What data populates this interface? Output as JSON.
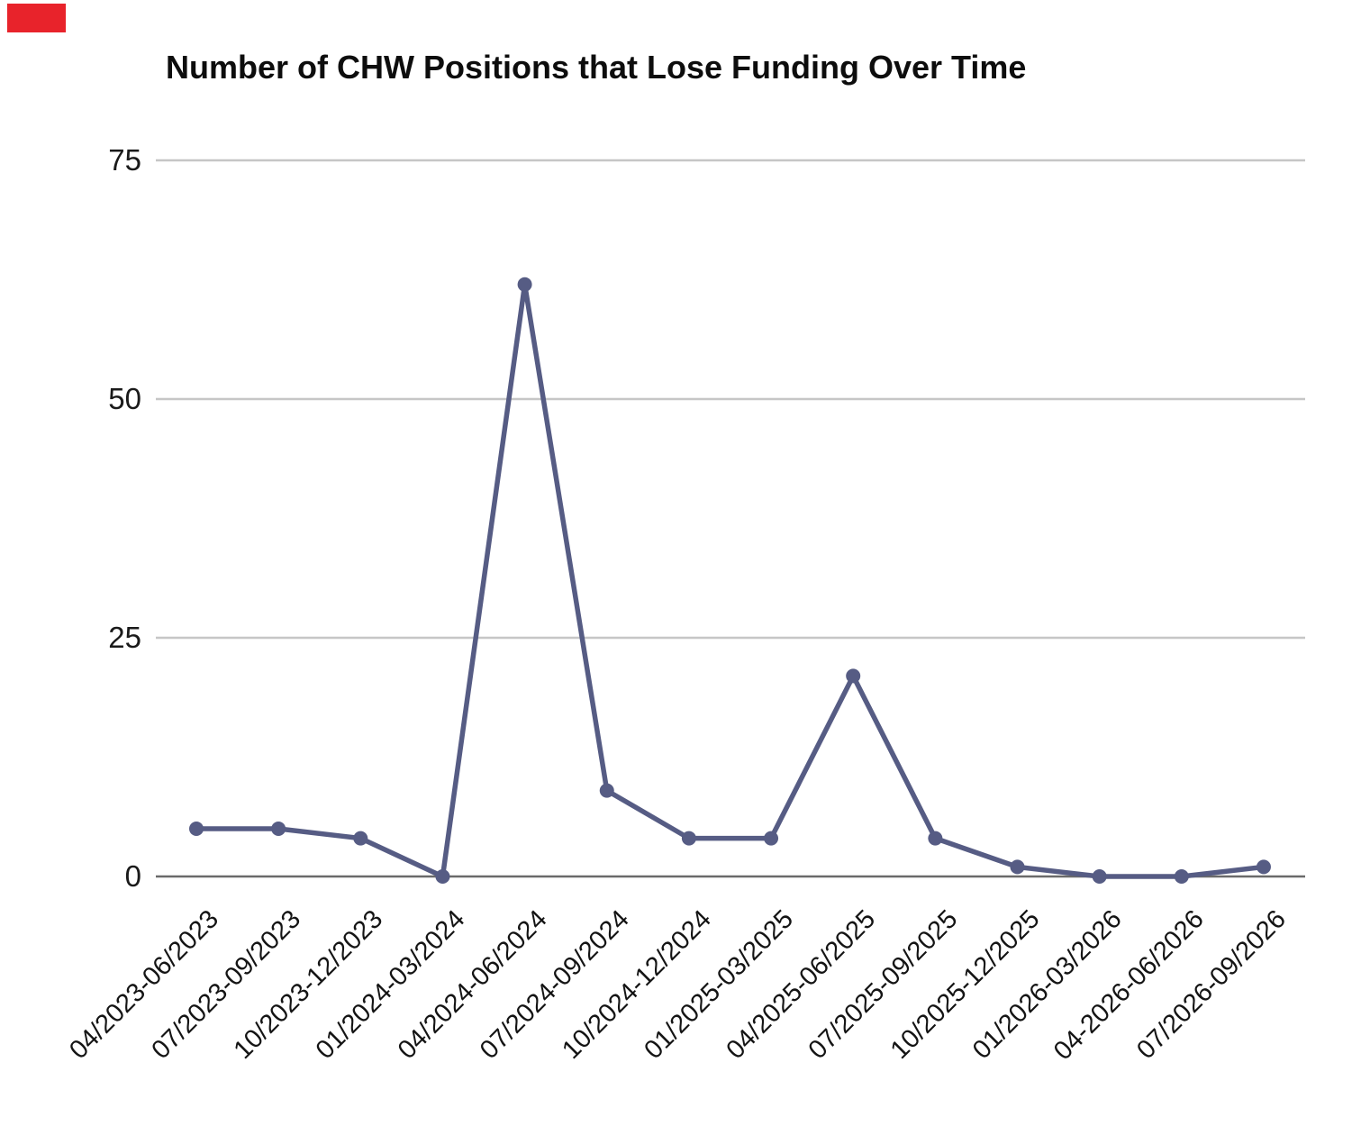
{
  "chart_data": {
    "type": "line",
    "title": "Number of CHW Positions that Lose Funding Over Time",
    "categories": [
      "04/2023-06/2023",
      "07/2023-09/2023",
      "10/2023-12/2023",
      "01/2024-03/2024",
      "04/2024-06/2024",
      "07/2024-09/2024",
      "10/2024-12/2024",
      "01/2025-03/2025",
      "04/2025-06/2025",
      "07/2025-09/2025",
      "10/2025-12/2025",
      "01/2026-03/2026",
      "04-2026-06/2026",
      "07/2026-09/2026"
    ],
    "values": [
      5,
      5,
      4,
      0,
      62,
      9,
      4,
      4,
      21,
      4,
      1,
      0,
      0,
      1
    ],
    "xlabel": "",
    "ylabel": "",
    "ylim": [
      0,
      75
    ],
    "yticks": [
      0,
      25,
      50,
      75
    ],
    "grid": "horizontal-only",
    "legend_position": "none",
    "x_label_rotation_deg": -45
  },
  "colors": {
    "line": "#565c84",
    "marker": "#565c84",
    "gridline": "#c6c6c6",
    "zero_axis": "#6a6a6a",
    "tick_text": "#141414",
    "title_text": "#0d0d0d",
    "background": "#ffffff",
    "annotation_red_box": "#e8232b"
  }
}
